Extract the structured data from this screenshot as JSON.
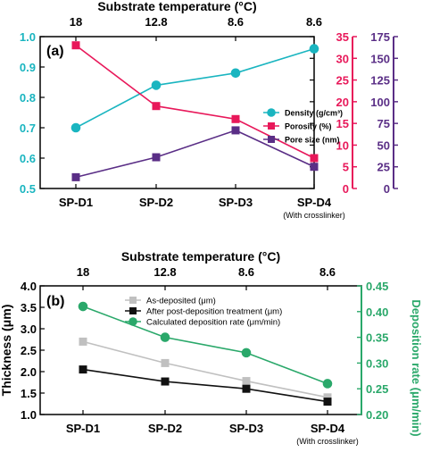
{
  "chart_data": [
    {
      "type": "line",
      "panel_label": "(a)",
      "top_axis": {
        "label": "Substrate temperature (°C)",
        "tick_labels": [
          "18",
          "12.8",
          "8.6",
          "8.6"
        ]
      },
      "categories": [
        "SP-D1",
        "SP-D2",
        "SP-D3",
        "SP-D4"
      ],
      "category_note": "(With crosslinker)",
      "axes": {
        "left": {
          "ylim": [
            0.5,
            1.0
          ],
          "ticks": [
            0.5,
            0.6,
            0.7,
            0.8,
            0.9,
            1.0
          ],
          "tick_labels": [
            "0.5",
            "0.6",
            "0.7",
            "0.8",
            "0.9",
            "1.0"
          ],
          "color": "#1ab5c0"
        },
        "right1": {
          "ylim": [
            0,
            35
          ],
          "ticks": [
            0,
            5,
            10,
            15,
            20,
            25,
            30,
            35
          ],
          "tick_labels": [
            "0",
            "5",
            "10",
            "15",
            "20",
            "25",
            "30",
            "35"
          ],
          "color": "#e8185a"
        },
        "right2": {
          "ylim": [
            0,
            175
          ],
          "ticks": [
            0,
            25,
            50,
            75,
            100,
            125,
            150,
            175
          ],
          "tick_labels": [
            "0",
            "25",
            "50",
            "75",
            "100",
            "125",
            "150",
            "175"
          ],
          "color": "#5a2e86"
        }
      },
      "series": [
        {
          "name": "Density (g/cm³)",
          "axis": "left",
          "values": [
            0.7,
            0.84,
            0.88,
            0.96
          ],
          "color": "#1ab5c0",
          "marker": "circle"
        },
        {
          "name": "Porosity (%)",
          "axis": "right1",
          "values": [
            33,
            19,
            16,
            7
          ],
          "color": "#e8185a",
          "marker": "square"
        },
        {
          "name": "Pore size (nm)",
          "axis": "right2",
          "values": [
            13,
            36,
            67,
            25
          ],
          "color": "#5a2e86",
          "marker": "square"
        }
      ],
      "legend_placement": "center-right"
    },
    {
      "type": "line",
      "panel_label": "(b)",
      "top_axis": {
        "label": "Substrate temperature (°C)",
        "tick_labels": [
          "18",
          "12.8",
          "8.6",
          "8.6"
        ]
      },
      "categories": [
        "SP-D1",
        "SP-D2",
        "SP-D3",
        "SP-D4"
      ],
      "category_note": "(With crosslinker)",
      "axes": {
        "left": {
          "label": "Thickness (μm)",
          "ylim": [
            1.0,
            4.0
          ],
          "ticks": [
            1.0,
            1.5,
            2.0,
            2.5,
            3.0,
            3.5,
            4.0
          ],
          "tick_labels": [
            "1.0",
            "1.5",
            "2.0",
            "2.5",
            "3.0",
            "3.5",
            "4.0"
          ],
          "color": "#000000"
        },
        "right": {
          "label": "Deposition rate (μm/min)",
          "ylim": [
            0.2,
            0.45
          ],
          "ticks": [
            0.2,
            0.25,
            0.3,
            0.35,
            0.4,
            0.45
          ],
          "tick_labels": [
            "0.20",
            "0.25",
            "0.30",
            "0.35",
            "0.40",
            "0.45"
          ],
          "color": "#2aa86a"
        }
      },
      "series": [
        {
          "name": "As-deposited (μm)",
          "axis": "left",
          "values": [
            2.7,
            2.2,
            1.78,
            1.4
          ],
          "color": "#c0c0c0",
          "marker": "square"
        },
        {
          "name": "After post-deposition treatment (μm)",
          "axis": "left",
          "values": [
            2.05,
            1.77,
            1.6,
            1.3
          ],
          "color": "#111111",
          "marker": "square"
        },
        {
          "name": "Calculated deposition rate (μm/min)",
          "axis": "right",
          "values": [
            0.41,
            0.35,
            0.32,
            0.26
          ],
          "color": "#2aa86a",
          "marker": "circle"
        }
      ],
      "legend_placement": "top-right"
    }
  ]
}
